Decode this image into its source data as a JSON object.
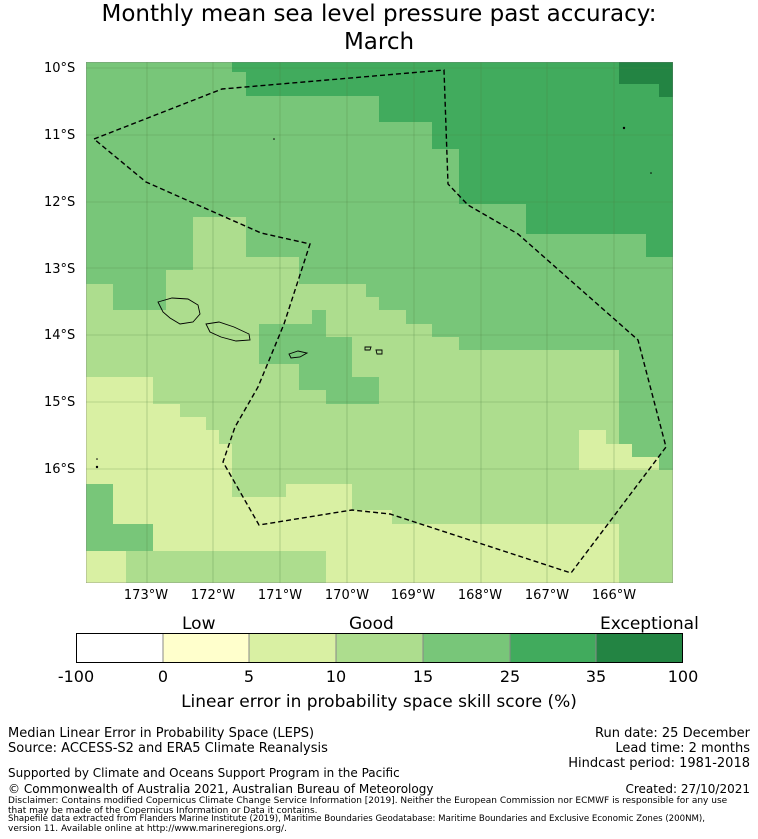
{
  "title_line1": "Monthly mean sea level pressure past accuracy:",
  "title_line2": "March",
  "lat_labels": [
    "10°S",
    "11°S",
    "12°S",
    "13°S",
    "14°S",
    "15°S",
    "16°S"
  ],
  "lon_labels": [
    "173°W",
    "172°W",
    "171°W",
    "170°W",
    "169°W",
    "168°W",
    "167°W",
    "166°W"
  ],
  "colorbar": {
    "categories": [
      "Low",
      "Good",
      "Exceptional"
    ],
    "ticks": [
      "-100",
      "0",
      "5",
      "10",
      "15",
      "25",
      "35",
      "100"
    ],
    "colors": [
      "#ffffff",
      "#ffffcc",
      "#d9f0a3",
      "#addd8e",
      "#78c679",
      "#41ab5d",
      "#238443"
    ],
    "title": "Linear error in probability space skill score (%)"
  },
  "footer": {
    "method": "Median Linear Error in Probability Space (LEPS)",
    "source": "Source: ACCESS-S2 and ERA5 Climate Reanalysis",
    "support": "Supported by Climate and Oceans Support Program in the Pacific",
    "copyright": "© Commonwealth of Australia 2021, Australian Bureau of Meteorology",
    "run_date": "Run date: 25 December",
    "lead_time": "Lead time: 2 months",
    "hindcast": "Hindcast period: 1981-2018",
    "created": "Created: 27/10/2021",
    "disclaimer1": "Disclaimer: Contains modified Copernicus Climate Change Service Information [2019]. Neither the European Commission nor ECMWF is responsible for any use",
    "disclaimer2": "that may be made of the Copernicus Information or Data it contains.",
    "shapefile1": "Shapefile data extracted from Flanders Marine Institute (2019), Maritime Boundaries Geodatabase: Maritime Boundaries and Exclusive Economic Zones (200NM),",
    "shapefile2": "version 11. Available online at http://www.marineregions.org/."
  }
}
